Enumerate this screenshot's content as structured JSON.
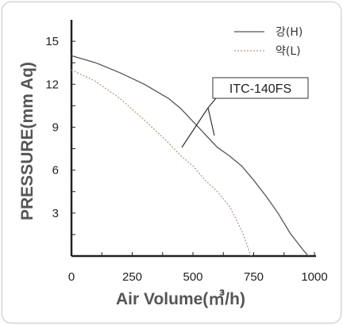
{
  "chart_data": {
    "type": "line",
    "model_label": "ITC-140FS",
    "xlabel": "Air Volume(㎥/h)",
    "ylabel": "PRESSURE(mm Aq)",
    "x_ticks": [
      0,
      250,
      500,
      750,
      1000
    ],
    "y_ticks": [
      3,
      6,
      9,
      12,
      15
    ],
    "xlim": [
      0,
      1000
    ],
    "ylim": [
      0,
      16.5
    ],
    "grid": false,
    "legend_position": "top-right",
    "series": [
      {
        "name": "강(H)",
        "style": "solid",
        "color": "#555555",
        "x": [
          0,
          100,
          200,
          300,
          400,
          450,
          500,
          550,
          600,
          650,
          700,
          750,
          800,
          850,
          900,
          950,
          975
        ],
        "y": [
          14.0,
          13.5,
          12.8,
          12.0,
          11.0,
          10.3,
          9.4,
          8.5,
          7.6,
          7.0,
          6.3,
          5.3,
          4.2,
          3.0,
          1.6,
          0.5,
          0.0
        ]
      },
      {
        "name": "약(L)",
        "style": "dashed",
        "color": "#b89a88",
        "x": [
          0,
          100,
          200,
          300,
          400,
          450,
          500,
          550,
          600,
          650,
          700,
          740
        ],
        "y": [
          13.0,
          12.2,
          11.0,
          9.5,
          7.9,
          7.0,
          6.3,
          5.3,
          4.5,
          3.5,
          1.8,
          0.0
        ]
      }
    ]
  }
}
